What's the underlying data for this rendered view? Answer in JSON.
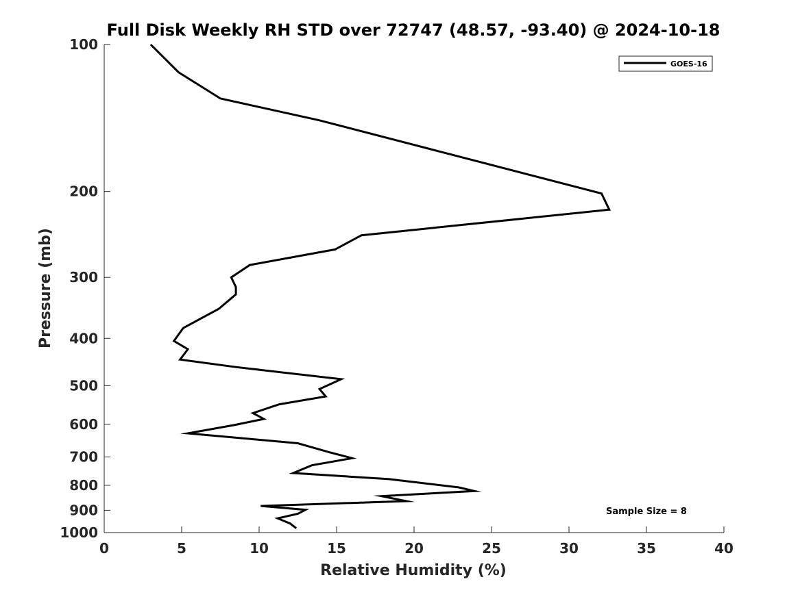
{
  "chart_data": {
    "type": "line",
    "title": "Full Disk Weekly RH STD over 72747 (48.57, -93.40) @ 2024-10-18",
    "xlabel": "Relative Humidity (%)",
    "ylabel": "Pressure (mb)",
    "xlim": [
      0,
      40
    ],
    "ylim": [
      100,
      1000
    ],
    "yscale": "log",
    "y_reversed": true,
    "x_ticks": [
      "0",
      "5",
      "10",
      "15",
      "20",
      "25",
      "30",
      "35",
      "40"
    ],
    "y_ticks": [
      "100",
      "200",
      "300",
      "400",
      "500",
      "600",
      "700",
      "800",
      "900",
      "1000"
    ],
    "grid": false,
    "legend_position": "top-right",
    "annotation": "Sample Size = 8",
    "series": [
      {
        "name": "GOES-16",
        "color": "#000000",
        "x": [
          3.0,
          4.8,
          7.5,
          13.9,
          32.1,
          32.6,
          16.6,
          14.9,
          9.4,
          8.2,
          8.5,
          8.5,
          7.4,
          5.1,
          4.5,
          5.4,
          4.9,
          8.5,
          15.3,
          13.9,
          14.3,
          11.3,
          9.6,
          10.3,
          8.4,
          5.4,
          12.5,
          14.5,
          16.0,
          13.4,
          12.2,
          18.4,
          22.9,
          23.9,
          17.9,
          19.5,
          10.1,
          13.0,
          12.5,
          11.2,
          12.0,
          12.4
        ],
        "y": [
          100,
          114,
          129,
          143,
          202,
          218,
          246,
          263,
          283,
          300,
          314,
          325,
          348,
          381,
          405,
          421,
          442,
          458,
          485,
          508,
          526,
          546,
          569,
          585,
          602,
          626,
          656,
          684,
          704,
          728,
          755,
          777,
          808,
          822,
          842,
          862,
          882,
          898,
          915,
          935,
          958,
          980
        ]
      }
    ]
  }
}
